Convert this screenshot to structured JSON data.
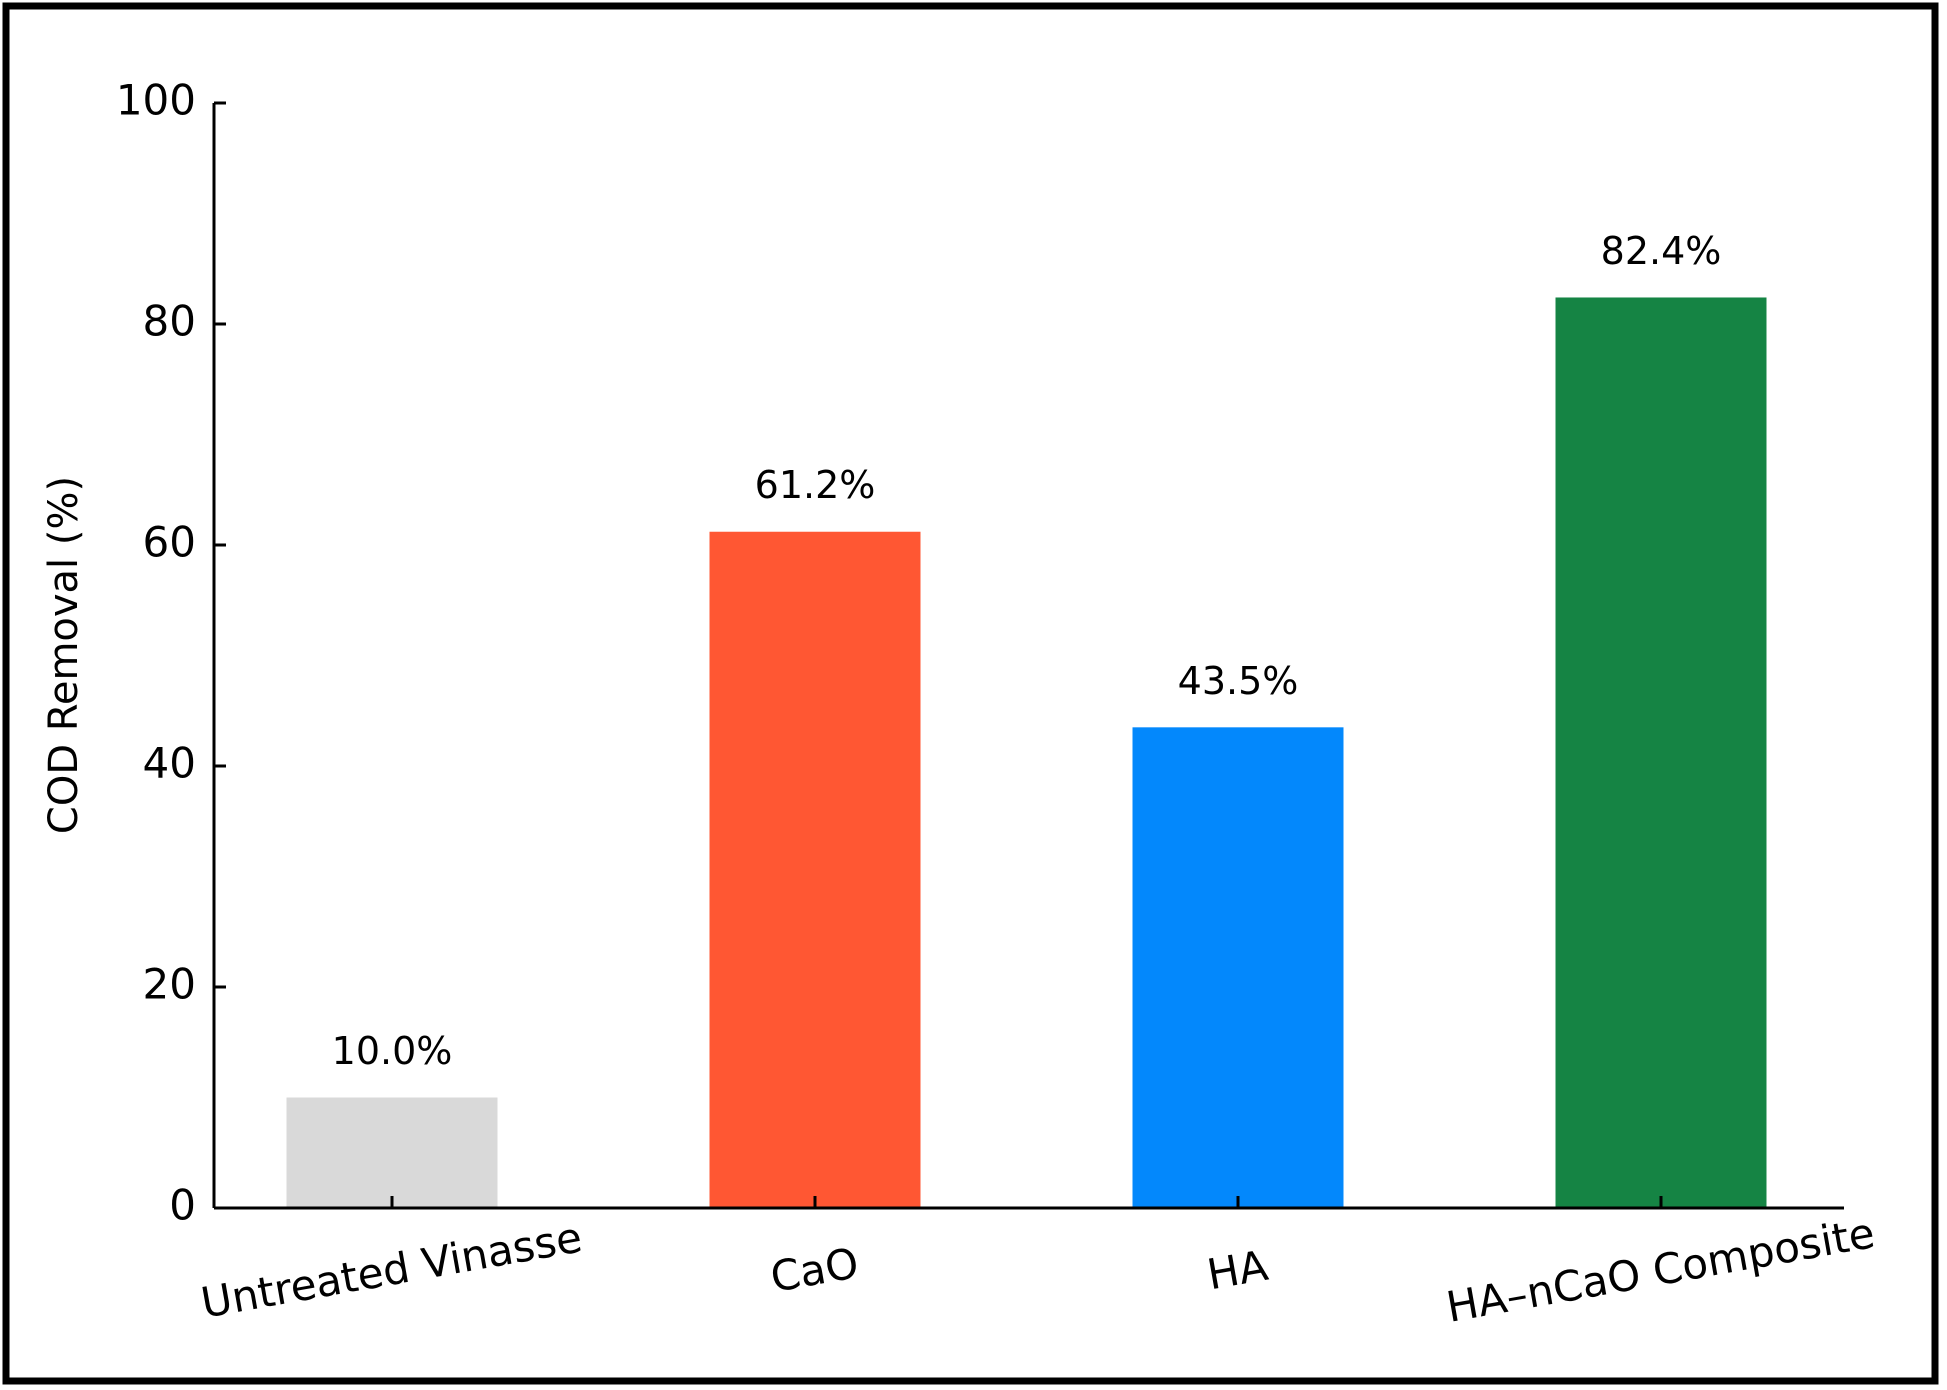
{
  "chart_data": {
    "type": "bar",
    "y_label": "COD Removal (%)",
    "categories": [
      "Untreated Vinasse",
      "CaO",
      "HA",
      "HA–nCaO Composite"
    ],
    "values": [
      10.0,
      61.2,
      43.5,
      82.4
    ],
    "value_labels": [
      "10.0%",
      "61.2%",
      "43.5%",
      "82.4%"
    ],
    "colors": [
      "#d9d9d9",
      "#ff5733",
      "#0388fc",
      "#158444"
    ],
    "ylim": [
      0,
      100
    ],
    "yticks": [
      0,
      20,
      40,
      60,
      80,
      100
    ],
    "grid": false
  }
}
